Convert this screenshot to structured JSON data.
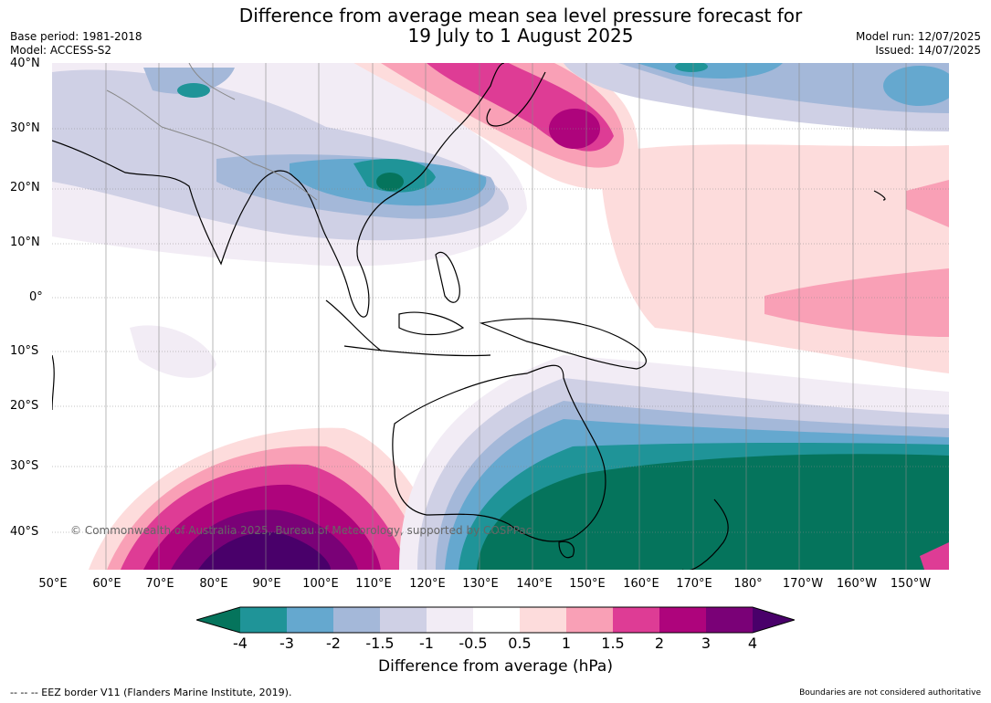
{
  "title_line1": "Difference from average mean sea level pressure forecast for",
  "title_line2": "19 July to 1 August 2025",
  "base_period": "Base period: 1981-2018",
  "model": "Model: ACCESS-S2",
  "model_run": "Model run: 12/07/2025",
  "issued": "Issued: 14/07/2025",
  "lat_labels": [
    "40°N",
    "30°N",
    "20°N",
    "10°N",
    "0°",
    "10°S",
    "20°S",
    "30°S",
    "40°S"
  ],
  "lon_labels": [
    "50°E",
    "60°E",
    "70°E",
    "80°E",
    "90°E",
    "100°E",
    "110°E",
    "120°E",
    "130°E",
    "140°E",
    "150°E",
    "160°E",
    "170°E",
    "180°",
    "170°W",
    "160°W",
    "150°W"
  ],
  "copyright": "© Commonwealth of Australia 2025, Bureau of Meteorology, supported by COSPPac",
  "colorbar": {
    "ticks": [
      "-4",
      "-3",
      "-2",
      "-1.5",
      "-1",
      "-0.5",
      "0.5",
      "1",
      "1.5",
      "2",
      "3",
      "4"
    ],
    "colors": [
      "#05745c",
      "#1f9498",
      "#65a8cf",
      "#a4b8d9",
      "#cfd0e5",
      "#f2ecf5",
      "#ffffff",
      "#fddcdc",
      "#f9a0b6",
      "#de3c95",
      "#ae047c",
      "#7a0177",
      "#49006a"
    ],
    "label": "Difference from average (hPa)"
  },
  "eez_note": "--  --  -- EEZ border V11 (Flanders Marine Institute, 2019).",
  "boundaries_note": "Boundaries are not considered authoritative"
}
